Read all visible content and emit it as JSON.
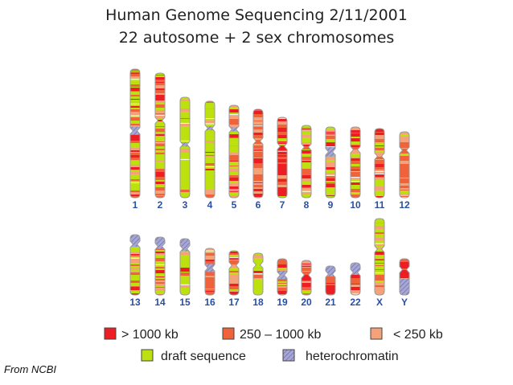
{
  "title": {
    "line1": "Human Genome Sequencing 2/11/2001",
    "line2": "22 autosome  + 2 sex chromosomes"
  },
  "colors": {
    "large": "#ee1d24",
    "mid": "#f0623a",
    "small": "#f5a27a",
    "draft": "#bde10f",
    "hetero": "#a7a7d6",
    "outline": "#999999",
    "label": "#2a4fa0"
  },
  "chromosomes": {
    "row1": [
      {
        "label": "1",
        "length": 160,
        "centromere": 0.48,
        "het": "mid",
        "composition": "mixed"
      },
      {
        "label": "2",
        "length": 155,
        "centromere": 0.38,
        "het": "none",
        "composition": "mixed"
      },
      {
        "label": "3",
        "length": 125,
        "centromere": 0.47,
        "het": "small",
        "composition": "draft"
      },
      {
        "label": "4",
        "length": 120,
        "centromere": 0.28,
        "het": "small",
        "composition": "draft"
      },
      {
        "label": "5",
        "length": 115,
        "centromere": 0.26,
        "het": "small",
        "composition": "mixed"
      },
      {
        "label": "6",
        "length": 110,
        "centromere": 0.36,
        "het": "none",
        "composition": "orange"
      },
      {
        "label": "7",
        "length": 100,
        "centromere": 0.36,
        "het": "none",
        "composition": "red"
      },
      {
        "label": "8",
        "length": 90,
        "centromere": 0.3,
        "het": "none",
        "composition": "mixed"
      },
      {
        "label": "9",
        "length": 88,
        "centromere": 0.35,
        "het": "large",
        "composition": "mixed"
      },
      {
        "label": "10",
        "length": 88,
        "centromere": 0.32,
        "het": "none",
        "composition": "mixed"
      },
      {
        "label": "11",
        "length": 86,
        "centromere": 0.4,
        "het": "none",
        "composition": "mixed"
      },
      {
        "label": "12",
        "length": 82,
        "centromere": 0.28,
        "het": "none",
        "composition": "orange"
      }
    ],
    "row2": [
      {
        "label": "13",
        "length": 75,
        "centromere": 0.16,
        "het": "satellite",
        "composition": "mixed"
      },
      {
        "label": "14",
        "length": 72,
        "centromere": 0.16,
        "het": "satellite",
        "composition": "mixed"
      },
      {
        "label": "15",
        "length": 70,
        "centromere": 0.18,
        "het": "satellite",
        "composition": "draft"
      },
      {
        "label": "16",
        "length": 58,
        "centromere": 0.42,
        "het": "mid",
        "composition": "orange"
      },
      {
        "label": "17",
        "length": 55,
        "centromere": 0.33,
        "het": "none",
        "composition": "orange"
      },
      {
        "label": "18",
        "length": 52,
        "centromere": 0.28,
        "het": "none",
        "composition": "draft"
      },
      {
        "label": "19",
        "length": 45,
        "centromere": 0.45,
        "het": "mid",
        "composition": "orange"
      },
      {
        "label": "20",
        "length": 43,
        "centromere": 0.42,
        "het": "none",
        "composition": "red"
      },
      {
        "label": "21",
        "length": 36,
        "centromere": 0.28,
        "het": "satellite",
        "composition": "red"
      },
      {
        "label": "22",
        "length": 40,
        "centromere": 0.3,
        "het": "satellite",
        "composition": "red"
      },
      {
        "label": "X",
        "length": 95,
        "centromere": 0.4,
        "het": "none",
        "composition": "mixed"
      },
      {
        "label": "Y",
        "length": 45,
        "centromere": 0.3,
        "het": "yq",
        "composition": "red"
      }
    ]
  },
  "legend": [
    {
      "key": "large",
      "text": "> 1000 kb"
    },
    {
      "key": "mid",
      "text": "250 – 1000 kb"
    },
    {
      "key": "small",
      "text": "< 250 kb"
    },
    {
      "key": "draft",
      "text": "draft sequence"
    },
    {
      "key": "hetero",
      "text": "heterochromatin"
    }
  ],
  "credit": "From NCBI"
}
